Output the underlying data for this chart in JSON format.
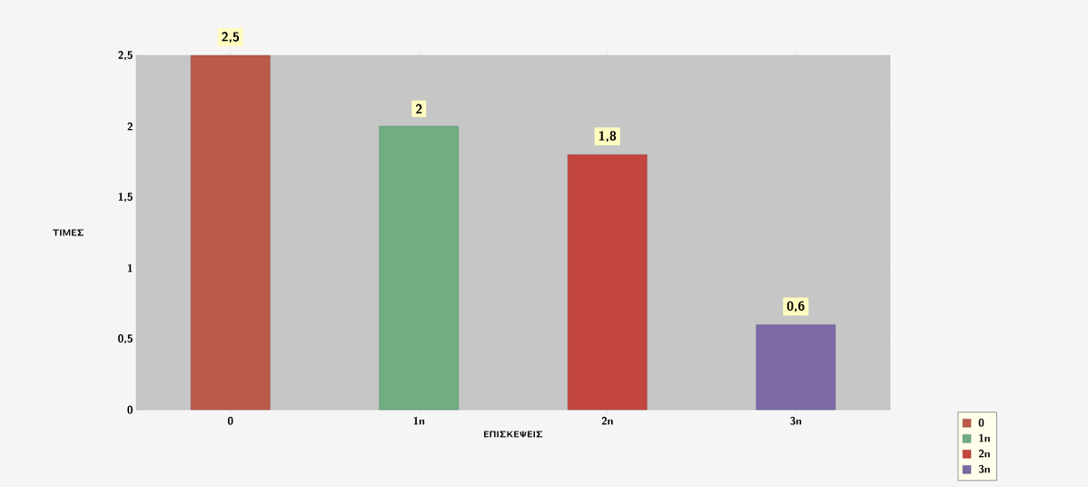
{
  "chart_data": {
    "type": "bar",
    "xlabel": "ΕΠΙΣΚΕΨΕΙΣ",
    "ylabel": "ΤΙΜΕΣ",
    "categories": [
      "0",
      "1n",
      "2n",
      "3n"
    ],
    "series": [
      {
        "name": "0",
        "color": "#bb5a4a",
        "values": [
          2.5,
          null,
          null,
          null
        ],
        "value_labels": [
          "2,5",
          null,
          null,
          null
        ]
      },
      {
        "name": "1n",
        "color": "#70ae82",
        "values": [
          null,
          2,
          null,
          null
        ],
        "value_labels": [
          null,
          "2",
          null,
          null
        ]
      },
      {
        "name": "2n",
        "color": "#c2463f",
        "values": [
          null,
          null,
          1.8,
          null
        ],
        "value_labels": [
          null,
          null,
          "1,8",
          null
        ]
      },
      {
        "name": "3n",
        "color": "#7b6aa6",
        "values": [
          null,
          null,
          null,
          0.6
        ],
        "value_labels": [
          null,
          null,
          null,
          "0,6"
        ]
      }
    ],
    "ylim": [
      0,
      2.5
    ],
    "yticks": [
      0,
      {
        "value": 0.5,
        "label": "0,5"
      },
      1,
      {
        "value": 1.5,
        "label": "1,5"
      },
      2,
      {
        "value": 2.5,
        "label": "2,5"
      }
    ],
    "legend": "bottom right"
  }
}
